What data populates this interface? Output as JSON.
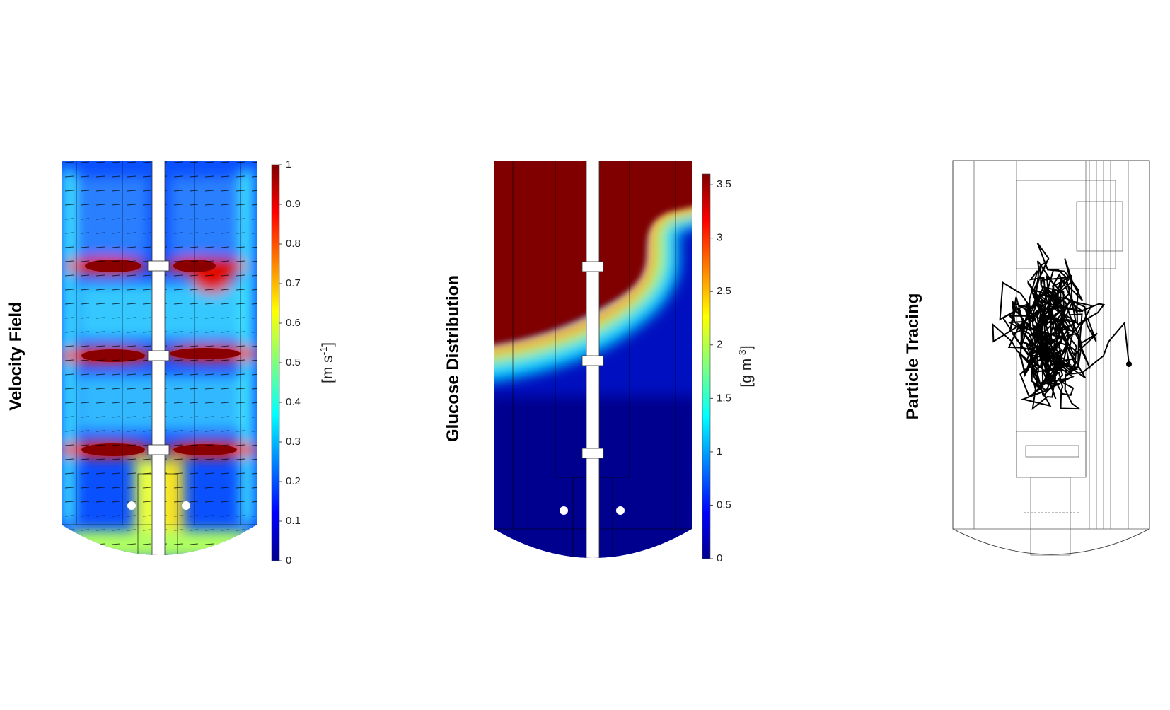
{
  "panels": [
    {
      "title": "Velocity Field",
      "colorbar": {
        "label": "[m s",
        "label_exponent": "-1",
        "label_end": "]",
        "range": [
          0,
          1
        ],
        "ticks": [
          0,
          0.1,
          0.2,
          0.3,
          0.4,
          0.5,
          0.6,
          0.7,
          0.8,
          0.9,
          1
        ]
      }
    },
    {
      "title": "Glucose Distribution",
      "colorbar": {
        "label": "[g m",
        "label_exponent": "-3",
        "label_end": "]",
        "range": [
          0,
          3.6
        ],
        "ticks": [
          0,
          0.5,
          1,
          1.5,
          2,
          2.5,
          3,
          3.5
        ]
      }
    },
    {
      "title": "Particle Tracing"
    }
  ]
}
